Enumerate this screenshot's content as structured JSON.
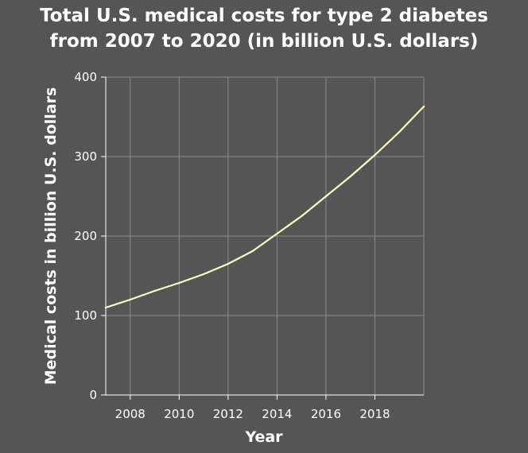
{
  "chart_data": {
    "type": "line",
    "title_lines": [
      "Total U.S. medical costs for type 2 diabetes",
      "from 2007 to 2020 (in billion U.S. dollars)"
    ],
    "xlabel": "Year",
    "ylabel": "Medical costs in billion U.S. dollars",
    "xlim": [
      2007,
      2020
    ],
    "ylim": [
      0,
      400
    ],
    "x_ticks": [
      2008,
      2010,
      2012,
      2014,
      2016,
      2018
    ],
    "y_ticks": [
      0,
      100,
      200,
      300,
      400
    ],
    "grid": true,
    "line_color": "#ffffc0",
    "series": [
      {
        "x": [
          2007,
          2008,
          2009,
          2010,
          2011,
          2012,
          2013,
          2014,
          2015,
          2016,
          2017,
          2018,
          2019,
          2020
        ],
        "values": [
          110,
          120,
          131,
          141,
          152,
          165,
          181,
          203,
          225,
          250,
          275,
          302,
          331,
          363
        ]
      }
    ]
  }
}
